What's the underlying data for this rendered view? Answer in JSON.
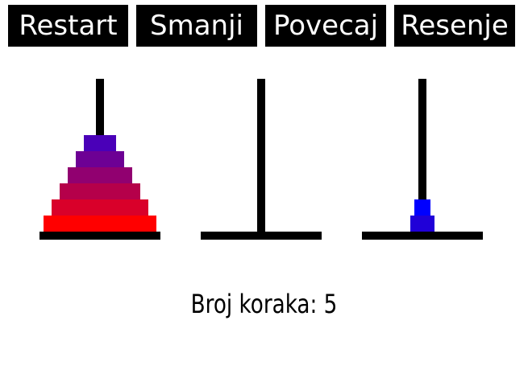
{
  "toolbar": {
    "restart_label": "Restart",
    "smanji_label": "Smanji",
    "povecaj_label": "Povecaj",
    "resenje_label": "Resenje"
  },
  "towers": [
    {
      "disks": [
        {
          "size": 7,
          "color": "#ff0000"
        },
        {
          "size": 6,
          "color": "#d9002a"
        },
        {
          "size": 5,
          "color": "#b5004a"
        },
        {
          "size": 4,
          "color": "#910070"
        },
        {
          "size": 3,
          "color": "#6d0094"
        },
        {
          "size": 2,
          "color": "#4a00b8"
        }
      ]
    },
    {
      "disks": []
    },
    {
      "disks": [
        {
          "size": 1.5,
          "color": "#2000d8"
        },
        {
          "size": 1,
          "color": "#0000ff"
        }
      ]
    }
  ],
  "status": {
    "counter_text": "Broj koraka: 5"
  }
}
